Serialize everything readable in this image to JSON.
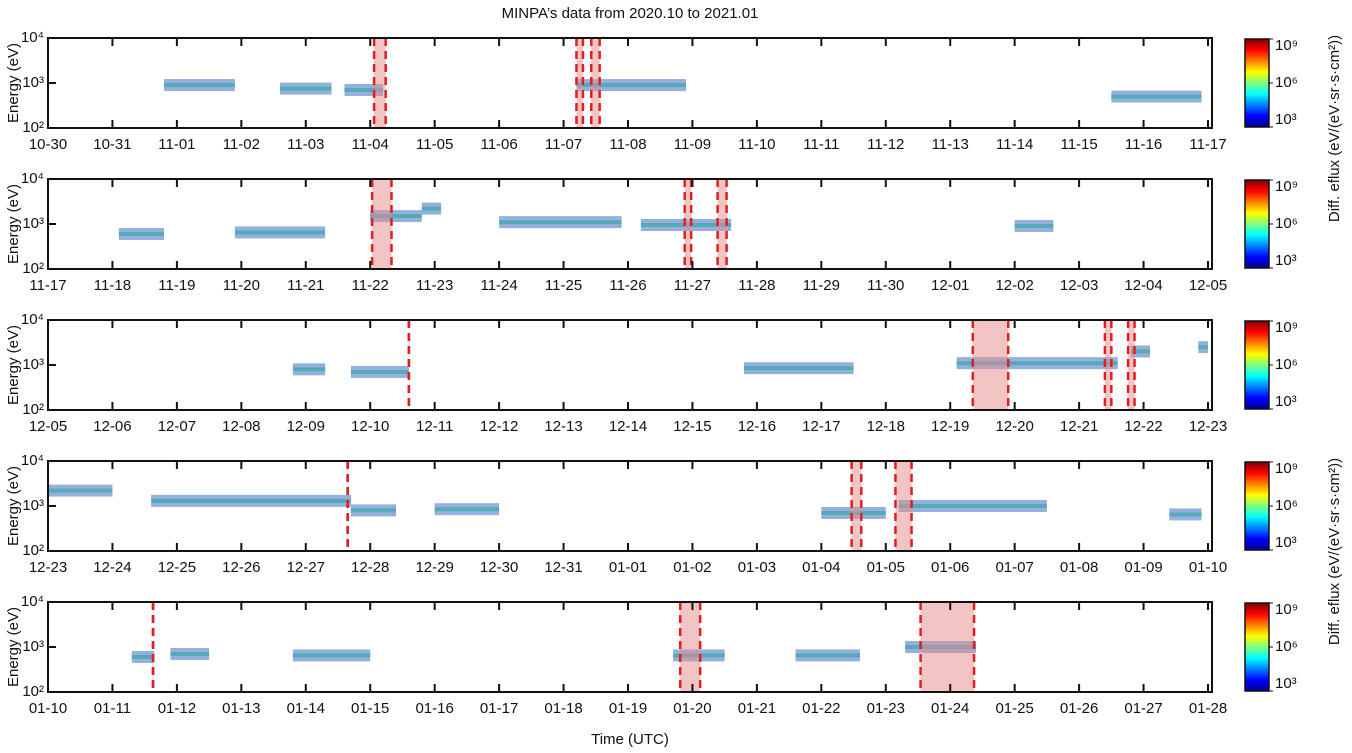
{
  "chart_data": [
    {
      "type": "spectrogram",
      "title": "MINPA’s data from 2020.10 to 2021.01",
      "ylabel": "Energy (eV)",
      "ylog": true,
      "ylim": [
        100,
        10000
      ],
      "yticks": [
        {
          "value": 100,
          "label": "10²"
        },
        {
          "value": 1000,
          "label": "10³"
        },
        {
          "value": 10000,
          "label": "10⁴"
        }
      ],
      "xlim": [
        0,
        18
      ],
      "xticks": [
        {
          "value": 0,
          "label": "10-30"
        },
        {
          "value": 1,
          "label": "10-31"
        },
        {
          "value": 2,
          "label": "11-01"
        },
        {
          "value": 3,
          "label": "11-02"
        },
        {
          "value": 4,
          "label": "11-03"
        },
        {
          "value": 5,
          "label": "11-04"
        },
        {
          "value": 6,
          "label": "11-05"
        },
        {
          "value": 7,
          "label": "11-06"
        },
        {
          "value": 8,
          "label": "11-07"
        },
        {
          "value": 9,
          "label": "11-08"
        },
        {
          "value": 10,
          "label": "11-09"
        },
        {
          "value": 11,
          "label": "11-10"
        },
        {
          "value": 12,
          "label": "11-11"
        },
        {
          "value": 13,
          "label": "11-12"
        },
        {
          "value": 14,
          "label": "11-13"
        },
        {
          "value": 15,
          "label": "11-14"
        },
        {
          "value": 16,
          "label": "11-15"
        },
        {
          "value": 17,
          "label": "11-16"
        },
        {
          "value": 18,
          "label": "11-17"
        }
      ],
      "bands": [
        {
          "x": [
            1.8,
            2.9
          ],
          "energy": 900
        },
        {
          "x": [
            3.6,
            4.4
          ],
          "energy": 750
        },
        {
          "x": [
            4.6,
            5.2
          ],
          "energy": 700
        },
        {
          "x": [
            8.2,
            9.9
          ],
          "energy": 900
        },
        {
          "x": [
            16.5,
            17.9
          ],
          "energy": 500
        }
      ],
      "events": [
        [
          5.06,
          5.24
        ],
        [
          8.2,
          8.3
        ],
        [
          8.43,
          8.56
        ]
      ],
      "clim": [
        1000,
        1000000000
      ],
      "cticks": [
        {
          "value": 1000,
          "label": "10³"
        },
        {
          "value": 1000000,
          "label": "10⁶"
        },
        {
          "value": 1000000000,
          "label": "10⁹"
        }
      ],
      "colorbar_label": "Diff. eflux (eV/(eV·sr·s·cm²))"
    },
    {
      "type": "spectrogram",
      "ylabel": "Energy (eV)",
      "ylog": true,
      "ylim": [
        100,
        10000
      ],
      "yticks": [
        {
          "value": 100,
          "label": "10²"
        },
        {
          "value": 1000,
          "label": "10³"
        },
        {
          "value": 10000,
          "label": "10⁴"
        }
      ],
      "xlim": [
        0,
        18
      ],
      "xticks": [
        {
          "value": 0,
          "label": "11-17"
        },
        {
          "value": 1,
          "label": "11-18"
        },
        {
          "value": 2,
          "label": "11-19"
        },
        {
          "value": 3,
          "label": "11-20"
        },
        {
          "value": 4,
          "label": "11-21"
        },
        {
          "value": 5,
          "label": "11-22"
        },
        {
          "value": 6,
          "label": "11-23"
        },
        {
          "value": 7,
          "label": "11-24"
        },
        {
          "value": 8,
          "label": "11-25"
        },
        {
          "value": 9,
          "label": "11-26"
        },
        {
          "value": 10,
          "label": "11-27"
        },
        {
          "value": 11,
          "label": "11-28"
        },
        {
          "value": 12,
          "label": "11-29"
        },
        {
          "value": 13,
          "label": "11-30"
        },
        {
          "value": 14,
          "label": "12-01"
        },
        {
          "value": 15,
          "label": "12-02"
        },
        {
          "value": 16,
          "label": "12-03"
        },
        {
          "value": 17,
          "label": "12-04"
        },
        {
          "value": 18,
          "label": "12-05"
        }
      ],
      "bands": [
        {
          "x": [
            1.1,
            1.8
          ],
          "energy": 600
        },
        {
          "x": [
            2.9,
            4.3
          ],
          "energy": 650
        },
        {
          "x": [
            5.0,
            5.8
          ],
          "energy": 1500
        },
        {
          "x": [
            5.8,
            6.1
          ],
          "energy": 2200
        },
        {
          "x": [
            7.0,
            8.9
          ],
          "energy": 1100
        },
        {
          "x": [
            9.2,
            10.6
          ],
          "energy": 950
        },
        {
          "x": [
            15.0,
            15.6
          ],
          "energy": 900
        }
      ],
      "events": [
        [
          5.03,
          5.33
        ],
        [
          9.88,
          9.98
        ],
        [
          10.39,
          10.53
        ]
      ],
      "clim": [
        1000,
        1000000000
      ],
      "cticks": [
        {
          "value": 1000,
          "label": "10³"
        },
        {
          "value": 1000000,
          "label": "10⁶"
        },
        {
          "value": 1000000000,
          "label": "10⁹"
        }
      ]
    },
    {
      "type": "spectrogram",
      "ylabel": "Energy (eV)",
      "ylog": true,
      "ylim": [
        100,
        10000
      ],
      "yticks": [
        {
          "value": 100,
          "label": "10²"
        },
        {
          "value": 1000,
          "label": "10³"
        },
        {
          "value": 10000,
          "label": "10⁴"
        }
      ],
      "xlim": [
        0,
        18
      ],
      "xticks": [
        {
          "value": 0,
          "label": "12-05"
        },
        {
          "value": 1,
          "label": "12-06"
        },
        {
          "value": 2,
          "label": "12-07"
        },
        {
          "value": 3,
          "label": "12-08"
        },
        {
          "value": 4,
          "label": "12-09"
        },
        {
          "value": 5,
          "label": "12-10"
        },
        {
          "value": 6,
          "label": "12-11"
        },
        {
          "value": 7,
          "label": "12-12"
        },
        {
          "value": 8,
          "label": "12-13"
        },
        {
          "value": 9,
          "label": "12-14"
        },
        {
          "value": 10,
          "label": "12-15"
        },
        {
          "value": 11,
          "label": "12-16"
        },
        {
          "value": 12,
          "label": "12-17"
        },
        {
          "value": 13,
          "label": "12-18"
        },
        {
          "value": 14,
          "label": "12-19"
        },
        {
          "value": 15,
          "label": "12-20"
        },
        {
          "value": 16,
          "label": "12-21"
        },
        {
          "value": 17,
          "label": "12-22"
        },
        {
          "value": 18,
          "label": "12-23"
        }
      ],
      "bands": [
        {
          "x": [
            3.8,
            4.3
          ],
          "energy": 800
        },
        {
          "x": [
            4.7,
            5.6
          ],
          "energy": 700
        },
        {
          "x": [
            10.8,
            12.5
          ],
          "energy": 850
        },
        {
          "x": [
            14.1,
            16.6
          ],
          "energy": 1100
        },
        {
          "x": [
            16.8,
            17.1
          ],
          "energy": 2000
        },
        {
          "x": [
            17.85,
            18
          ],
          "energy": 2500
        }
      ],
      "events": [
        [
          5.6,
          5.6
        ],
        [
          14.35,
          14.9
        ],
        [
          16.4,
          16.5
        ],
        [
          16.76,
          16.86
        ]
      ],
      "clim": [
        1000,
        1000000000
      ],
      "cticks": [
        {
          "value": 1000,
          "label": "10³"
        },
        {
          "value": 1000000,
          "label": "10⁶"
        },
        {
          "value": 1000000000,
          "label": "10⁹"
        }
      ]
    },
    {
      "type": "spectrogram",
      "ylabel": "Energy (eV)",
      "ylog": true,
      "ylim": [
        100,
        10000
      ],
      "yticks": [
        {
          "value": 100,
          "label": "10²"
        },
        {
          "value": 1000,
          "label": "10³"
        },
        {
          "value": 10000,
          "label": "10⁴"
        }
      ],
      "xlim": [
        0,
        18
      ],
      "xticks": [
        {
          "value": 0,
          "label": "12-23"
        },
        {
          "value": 1,
          "label": "12-24"
        },
        {
          "value": 2,
          "label": "12-25"
        },
        {
          "value": 3,
          "label": "12-26"
        },
        {
          "value": 4,
          "label": "12-27"
        },
        {
          "value": 5,
          "label": "12-28"
        },
        {
          "value": 6,
          "label": "12-29"
        },
        {
          "value": 7,
          "label": "12-30"
        },
        {
          "value": 8,
          "label": "12-31"
        },
        {
          "value": 9,
          "label": "01-01"
        },
        {
          "value": 10,
          "label": "01-02"
        },
        {
          "value": 11,
          "label": "01-03"
        },
        {
          "value": 12,
          "label": "01-04"
        },
        {
          "value": 13,
          "label": "01-05"
        },
        {
          "value": 14,
          "label": "01-06"
        },
        {
          "value": 15,
          "label": "01-07"
        },
        {
          "value": 16,
          "label": "01-08"
        },
        {
          "value": 17,
          "label": "01-09"
        },
        {
          "value": 18,
          "label": "01-10"
        }
      ],
      "bands": [
        {
          "x": [
            0,
            1.0
          ],
          "energy": 2200
        },
        {
          "x": [
            1.6,
            4.7
          ],
          "energy": 1300
        },
        {
          "x": [
            4.7,
            5.4
          ],
          "energy": 800
        },
        {
          "x": [
            6.0,
            7.0
          ],
          "energy": 850
        },
        {
          "x": [
            12.0,
            13.0
          ],
          "energy": 700
        },
        {
          "x": [
            13.2,
            15.5
          ],
          "energy": 1000
        },
        {
          "x": [
            17.4,
            17.9
          ],
          "energy": 650
        }
      ],
      "events": [
        [
          4.65,
          4.65
        ],
        [
          12.47,
          12.62
        ],
        [
          13.15,
          13.4
        ]
      ],
      "clim": [
        1000,
        1000000000
      ],
      "cticks": [
        {
          "value": 1000,
          "label": "10³"
        },
        {
          "value": 1000000,
          "label": "10⁶"
        },
        {
          "value": 1000000000,
          "label": "10⁹"
        }
      ],
      "colorbar_label": "Diff. eflux (eV/(eV·sr·s·cm²))"
    },
    {
      "type": "spectrogram",
      "ylabel": "Energy (eV)",
      "ylog": true,
      "xlabel": "Time (UTC)",
      "ylim": [
        100,
        10000
      ],
      "yticks": [
        {
          "value": 100,
          "label": "10²"
        },
        {
          "value": 1000,
          "label": "10³"
        },
        {
          "value": 10000,
          "label": "10⁴"
        }
      ],
      "xlim": [
        0,
        18
      ],
      "xticks": [
        {
          "value": 0,
          "label": "01-10"
        },
        {
          "value": 1,
          "label": "01-11"
        },
        {
          "value": 2,
          "label": "01-12"
        },
        {
          "value": 3,
          "label": "01-13"
        },
        {
          "value": 4,
          "label": "01-14"
        },
        {
          "value": 5,
          "label": "01-15"
        },
        {
          "value": 6,
          "label": "01-16"
        },
        {
          "value": 7,
          "label": "01-17"
        },
        {
          "value": 8,
          "label": "01-18"
        },
        {
          "value": 9,
          "label": "01-19"
        },
        {
          "value": 10,
          "label": "01-20"
        },
        {
          "value": 11,
          "label": "01-21"
        },
        {
          "value": 12,
          "label": "01-22"
        },
        {
          "value": 13,
          "label": "01-23"
        },
        {
          "value": 14,
          "label": "01-24"
        },
        {
          "value": 15,
          "label": "01-25"
        },
        {
          "value": 16,
          "label": "01-26"
        },
        {
          "value": 17,
          "label": "01-27"
        },
        {
          "value": 18,
          "label": "01-28"
        }
      ],
      "bands": [
        {
          "x": [
            1.3,
            1.65
          ],
          "energy": 600
        },
        {
          "x": [
            1.9,
            2.5
          ],
          "energy": 700
        },
        {
          "x": [
            3.8,
            5.0
          ],
          "energy": 650
        },
        {
          "x": [
            9.7,
            10.5
          ],
          "energy": 650
        },
        {
          "x": [
            11.6,
            12.6
          ],
          "energy": 650
        },
        {
          "x": [
            13.3,
            14.4
          ],
          "energy": 1000
        }
      ],
      "events": [
        [
          1.63,
          1.63
        ],
        [
          9.81,
          10.12
        ],
        [
          13.54,
          14.37
        ]
      ],
      "clim": [
        1000,
        1000000000
      ],
      "cticks": [
        {
          "value": 1000,
          "label": "10³"
        },
        {
          "value": 1000000,
          "label": "10⁶"
        },
        {
          "value": 1000000000,
          "label": "10⁹"
        }
      ]
    }
  ]
}
